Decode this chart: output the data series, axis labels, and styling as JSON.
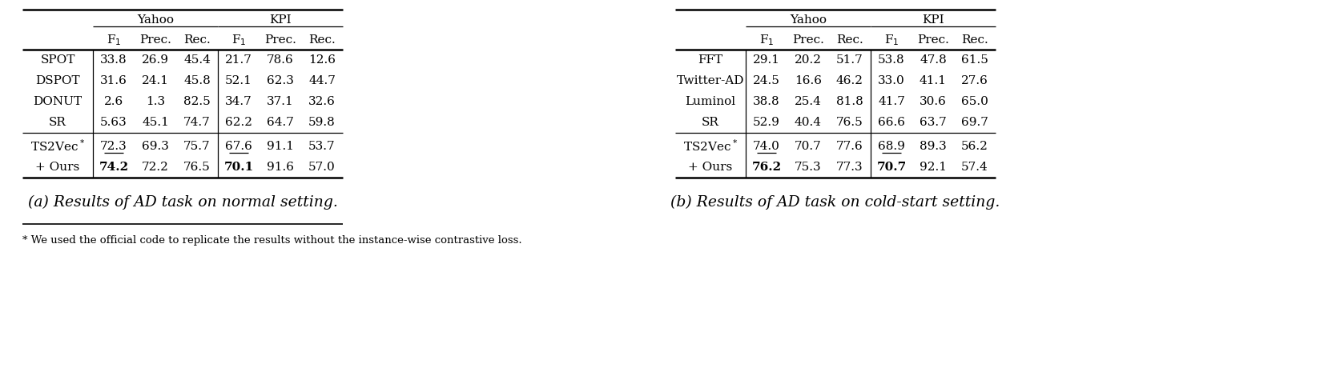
{
  "table_a": {
    "title": "(a) Results of AD task on normal setting.",
    "rows_block1": [
      {
        "name": "SPOT",
        "vals": [
          "33.8",
          "26.9",
          "45.4",
          "21.7",
          "78.6",
          "12.6"
        ]
      },
      {
        "name": "DSPOT",
        "vals": [
          "31.6",
          "24.1",
          "45.8",
          "52.1",
          "62.3",
          "44.7"
        ]
      },
      {
        "name": "DONUT",
        "vals": [
          "2.6",
          "1.3",
          "82.5",
          "34.7",
          "37.1",
          "32.6"
        ]
      },
      {
        "name": "SR",
        "vals": [
          "5.63",
          "45.1",
          "74.7",
          "62.2",
          "64.7",
          "59.8"
        ]
      }
    ],
    "rows_block2": [
      {
        "name": "TS2Vec*",
        "vals": [
          "72.3",
          "69.3",
          "75.7",
          "67.6",
          "91.1",
          "53.7"
        ],
        "bold": [],
        "underline": [
          0,
          3
        ]
      },
      {
        "name": "+ Ours",
        "vals": [
          "74.2",
          "72.2",
          "76.5",
          "70.1",
          "91.6",
          "57.0"
        ],
        "bold": [
          0,
          3
        ],
        "underline": []
      }
    ]
  },
  "table_b": {
    "title": "(b) Results of AD task on cold-start setting.",
    "rows_block1": [
      {
        "name": "FFT",
        "vals": [
          "29.1",
          "20.2",
          "51.7",
          "53.8",
          "47.8",
          "61.5"
        ]
      },
      {
        "name": "Twitter-AD",
        "vals": [
          "24.5",
          "16.6",
          "46.2",
          "33.0",
          "41.1",
          "27.6"
        ]
      },
      {
        "name": "Luminol",
        "vals": [
          "38.8",
          "25.4",
          "81.8",
          "41.7",
          "30.6",
          "65.0"
        ]
      },
      {
        "name": "SR",
        "vals": [
          "52.9",
          "40.4",
          "76.5",
          "66.6",
          "63.7",
          "69.7"
        ]
      }
    ],
    "rows_block2": [
      {
        "name": "TS2Vec*",
        "vals": [
          "74.0",
          "70.7",
          "77.6",
          "68.9",
          "89.3",
          "56.2"
        ],
        "bold": [],
        "underline": [
          0,
          3
        ]
      },
      {
        "name": "+ Ours",
        "vals": [
          "76.2",
          "75.3",
          "77.3",
          "70.7",
          "92.1",
          "57.4"
        ],
        "bold": [
          0,
          3
        ],
        "underline": []
      }
    ]
  },
  "footnote": "* We used the official code to replicate the results without the instance-wise contrastive loss."
}
